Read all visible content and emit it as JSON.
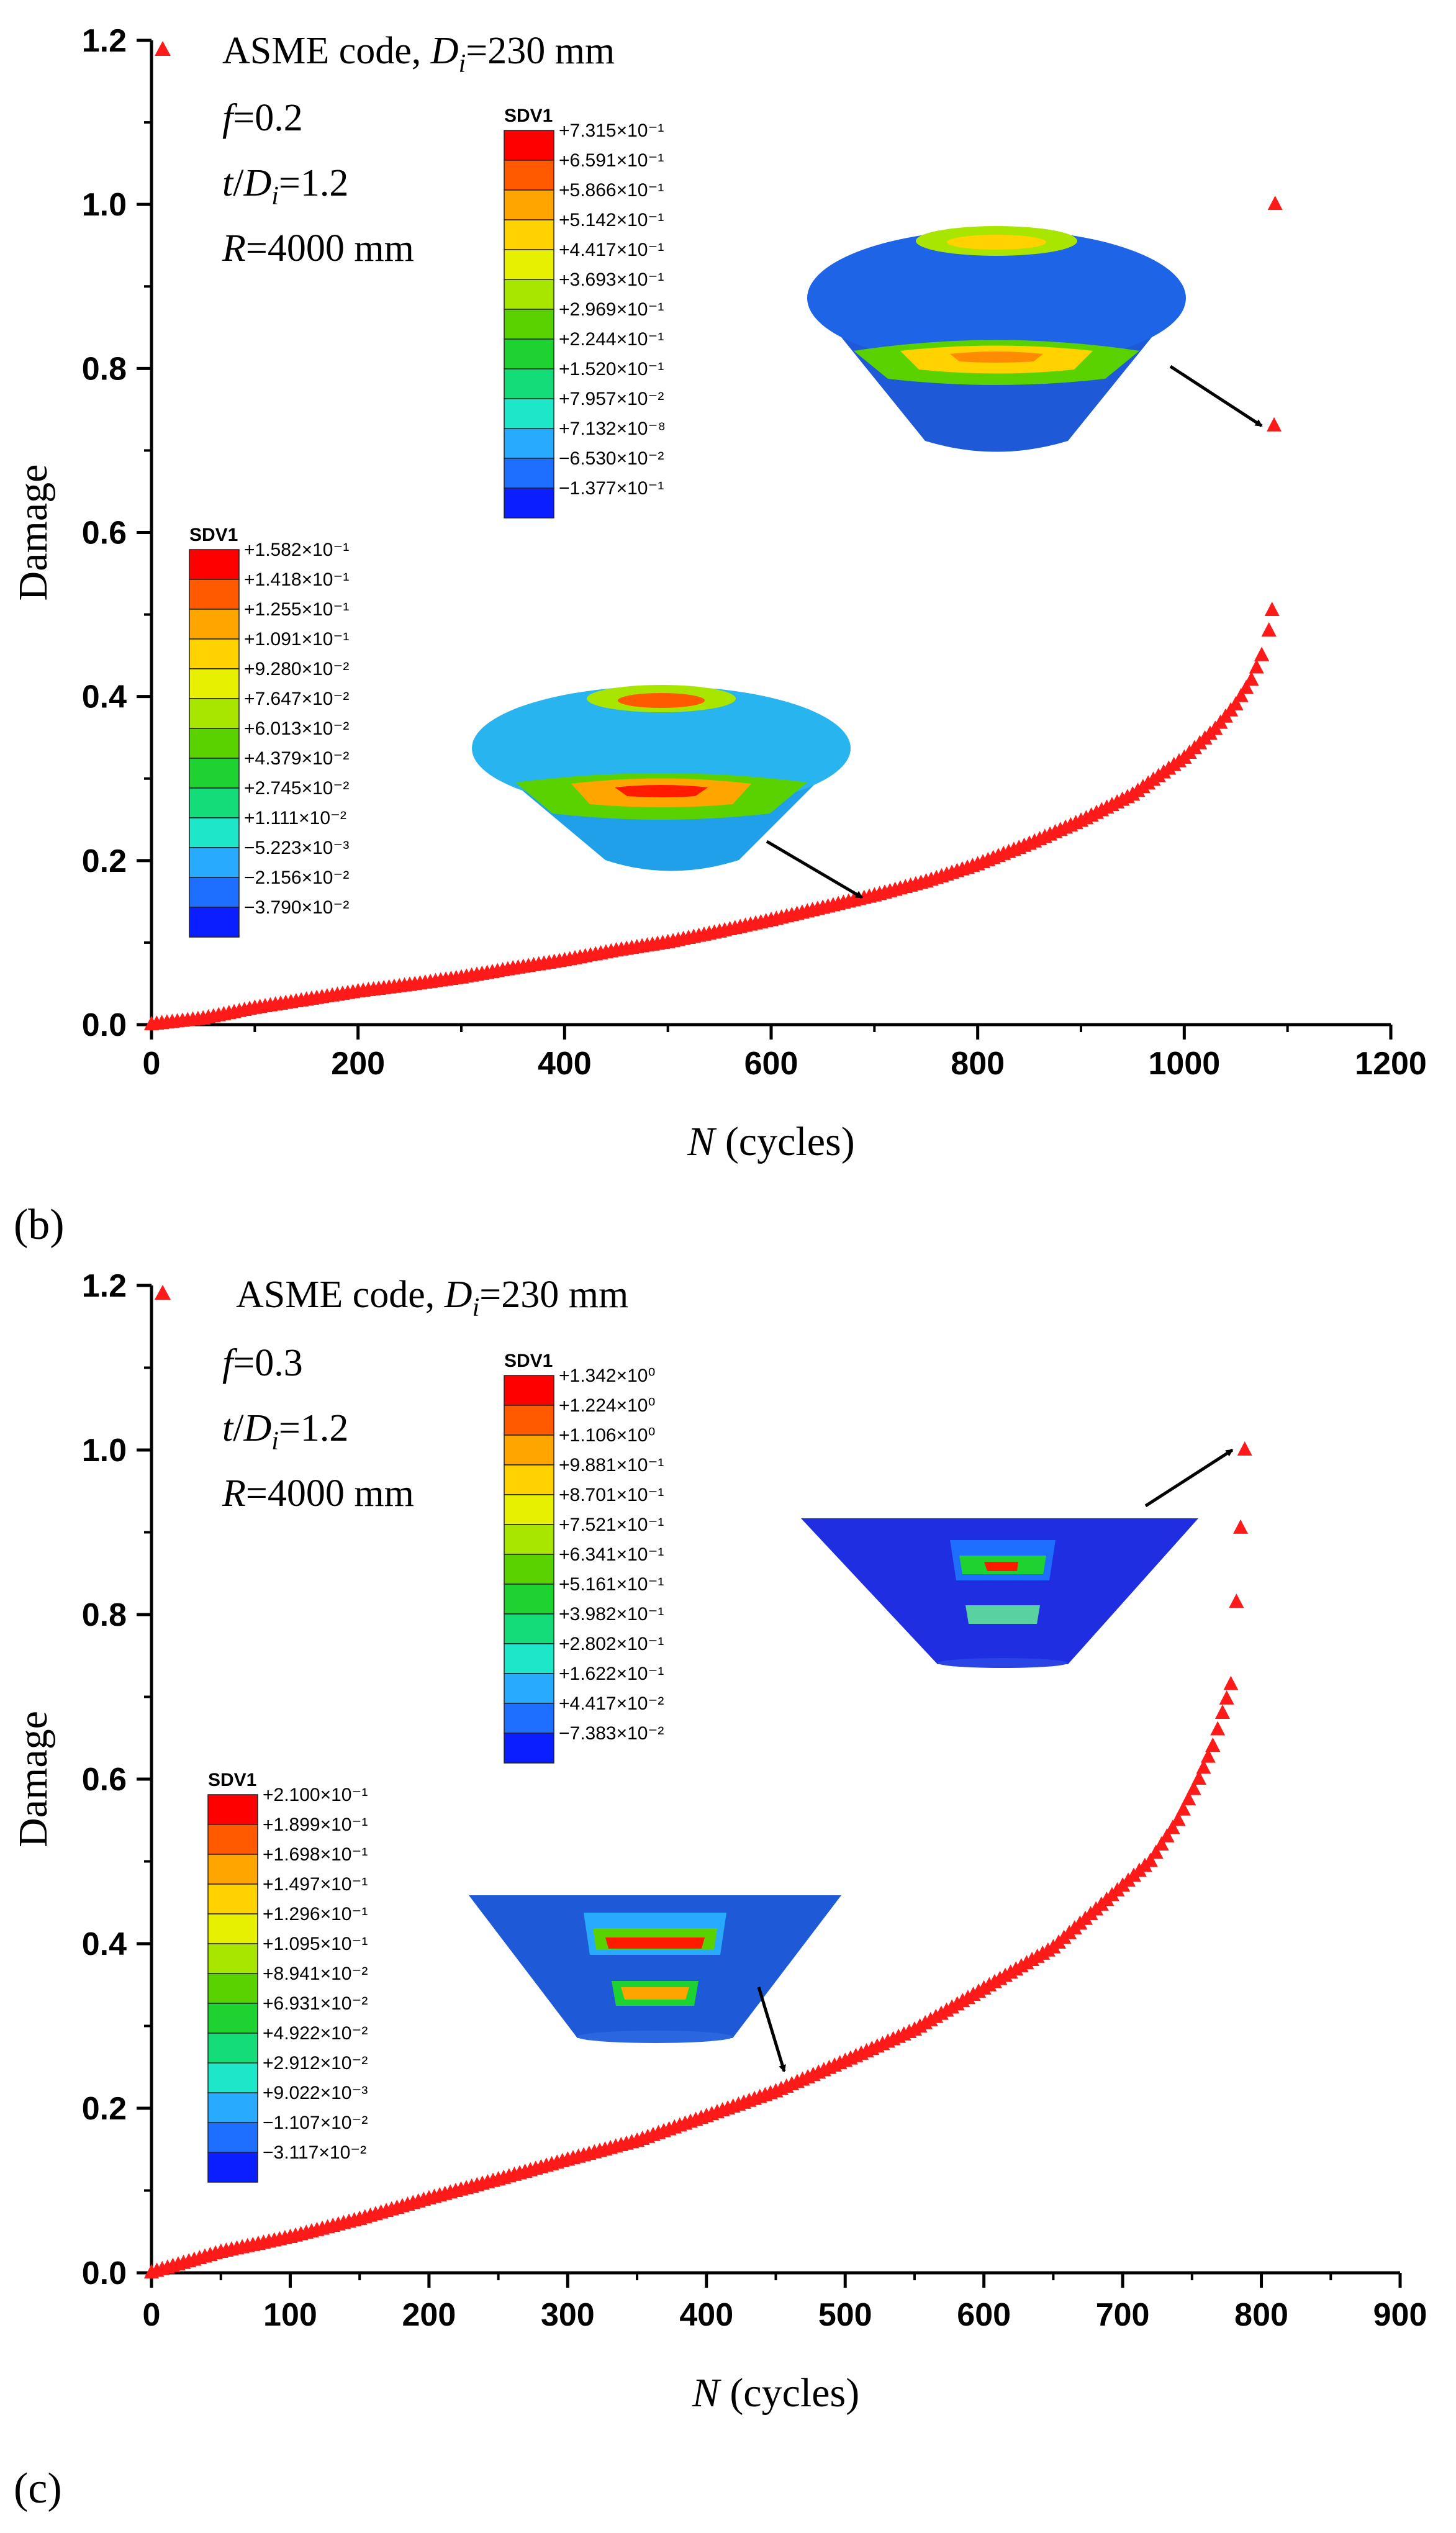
{
  "colors": {
    "marker": "#ff1a1a",
    "axis": "#000000",
    "arrow": "#000000"
  },
  "contour_colors": [
    "#ff0000",
    "#ff5a00",
    "#ffa500",
    "#ffd200",
    "#e6f000",
    "#a8e600",
    "#5ad200",
    "#1ed232",
    "#14dc78",
    "#1ee6c8",
    "#28aaff",
    "#1e6eff",
    "#0a1eff"
  ],
  "chart_data": [
    {
      "panel_label": "",
      "type": "scatter",
      "xlabel": "N (cycles)",
      "ylabel": "Damage",
      "xlim": [
        0,
        1200
      ],
      "ylim": [
        0,
        1.2
      ],
      "xticks": [
        "0",
        "200",
        "400",
        "600",
        "800",
        "1000",
        "1200"
      ],
      "yticks": [
        "0.0",
        "0.2",
        "0.4",
        "0.6",
        "0.8",
        "1.0",
        "1.2"
      ],
      "legend": "ASME code, D_i=230 mm",
      "annotations": [
        "f=0.2",
        "t/D_i=1.2",
        "R=4000 mm"
      ],
      "series": [
        {
          "name": "ASME code, D_i=230 mm",
          "marker": "triangle",
          "points": [
            [
              0,
              0.0
            ],
            [
              50,
              0.007
            ],
            [
              100,
              0.02
            ],
            [
              150,
              0.03
            ],
            [
              200,
              0.04
            ],
            [
              250,
              0.048
            ],
            [
              300,
              0.057
            ],
            [
              350,
              0.068
            ],
            [
              400,
              0.078
            ],
            [
              450,
              0.09
            ],
            [
              500,
              0.1
            ],
            [
              550,
              0.113
            ],
            [
              600,
              0.127
            ],
            [
              650,
              0.142
            ],
            [
              700,
              0.157
            ],
            [
              750,
              0.174
            ],
            [
              800,
              0.195
            ],
            [
              850,
              0.22
            ],
            [
              900,
              0.248
            ],
            [
              950,
              0.28
            ],
            [
              1000,
              0.325
            ],
            [
              1030,
              0.36
            ],
            [
              1050,
              0.39
            ],
            [
              1065,
              0.42
            ],
            [
              1075,
              0.45
            ],
            [
              1082,
              0.48
            ],
            [
              1085,
              0.505
            ],
            [
              1087,
              0.73
            ],
            [
              1088,
              1.0
            ]
          ]
        }
      ],
      "contour_plots": [
        {
          "title": "SDV1",
          "values": [
            "+1.582×10⁻¹",
            "+1.418×10⁻¹",
            "+1.255×10⁻¹",
            "+1.091×10⁻¹",
            "+9.280×10⁻²",
            "+7.647×10⁻²",
            "+6.013×10⁻²",
            "+4.379×10⁻²",
            "+2.745×10⁻²",
            "+1.111×10⁻²",
            "−5.223×10⁻³",
            "−2.156×10⁻²",
            "−3.790×10⁻²"
          ],
          "arrow_to": [
            700,
            0.155
          ]
        },
        {
          "title": "SDV1",
          "values": [
            "+7.315×10⁻¹",
            "+6.591×10⁻¹",
            "+5.866×10⁻¹",
            "+5.142×10⁻¹",
            "+4.417×10⁻¹",
            "+3.693×10⁻¹",
            "+2.969×10⁻¹",
            "+2.244×10⁻¹",
            "+1.520×10⁻¹",
            "+7.957×10⁻²",
            "+7.132×10⁻⁸",
            "−6.530×10⁻²",
            "−1.377×10⁻¹"
          ],
          "arrow_to": [
            1087,
            0.73
          ]
        }
      ]
    },
    {
      "panel_label": "(b)",
      "type": "scatter",
      "xlabel": "N (cycles)",
      "ylabel": "Damage",
      "xlim": [
        0,
        900
      ],
      "ylim": [
        0,
        1.2
      ],
      "xticks": [
        "0",
        "100",
        "200",
        "300",
        "400",
        "500",
        "600",
        "700",
        "800",
        "900"
      ],
      "yticks": [
        "0.0",
        "0.2",
        "0.4",
        "0.6",
        "0.8",
        "1.0",
        "1.2"
      ],
      "legend": "ASME code, D_i=230 mm",
      "annotations": [
        "f=0.3",
        "t/D_i=1.2",
        "R=4000 mm"
      ],
      "series": [
        {
          "name": "ASME code, D_i=230 mm",
          "marker": "triangle",
          "points": [
            [
              0,
              0.0
            ],
            [
              50,
              0.025
            ],
            [
              100,
              0.043
            ],
            [
              150,
              0.065
            ],
            [
              200,
              0.09
            ],
            [
              250,
              0.113
            ],
            [
              300,
              0.137
            ],
            [
              350,
              0.16
            ],
            [
              400,
              0.19
            ],
            [
              450,
              0.22
            ],
            [
              500,
              0.257
            ],
            [
              550,
              0.295
            ],
            [
              600,
              0.345
            ],
            [
              650,
              0.395
            ],
            [
              700,
              0.47
            ],
            [
              720,
              0.5
            ],
            [
              740,
              0.55
            ],
            [
              755,
              0.6
            ],
            [
              765,
              0.64
            ],
            [
              772,
              0.68
            ],
            [
              778,
              0.715
            ],
            [
              782,
              0.815
            ],
            [
              785,
              0.905
            ],
            [
              788,
              1.0
            ]
          ]
        }
      ],
      "contour_plots": [
        {
          "title": "SDV1",
          "values": [
            "+2.100×10⁻¹",
            "+1.899×10⁻¹",
            "+1.698×10⁻¹",
            "+1.497×10⁻¹",
            "+1.296×10⁻¹",
            "+1.095×10⁻¹",
            "+8.941×10⁻²",
            "+6.931×10⁻²",
            "+4.922×10⁻²",
            "+2.912×10⁻²",
            "+9.022×10⁻³",
            "−1.107×10⁻²",
            "−3.117×10⁻²"
          ],
          "arrow_to": [
            465,
            0.245
          ]
        },
        {
          "title": "SDV1",
          "values": [
            "+1.342×10⁰",
            "+1.224×10⁰",
            "+1.106×10⁰",
            "+9.881×10⁻¹",
            "+8.701×10⁻¹",
            "+7.521×10⁻¹",
            "+6.341×10⁻¹",
            "+5.161×10⁻¹",
            "+3.982×10⁻¹",
            "+2.802×10⁻¹",
            "+1.622×10⁻¹",
            "+4.417×10⁻²",
            "−7.383×10⁻²"
          ],
          "arrow_to": [
            788,
            1.0
          ]
        }
      ]
    }
  ],
  "bottom_label": "(c)"
}
